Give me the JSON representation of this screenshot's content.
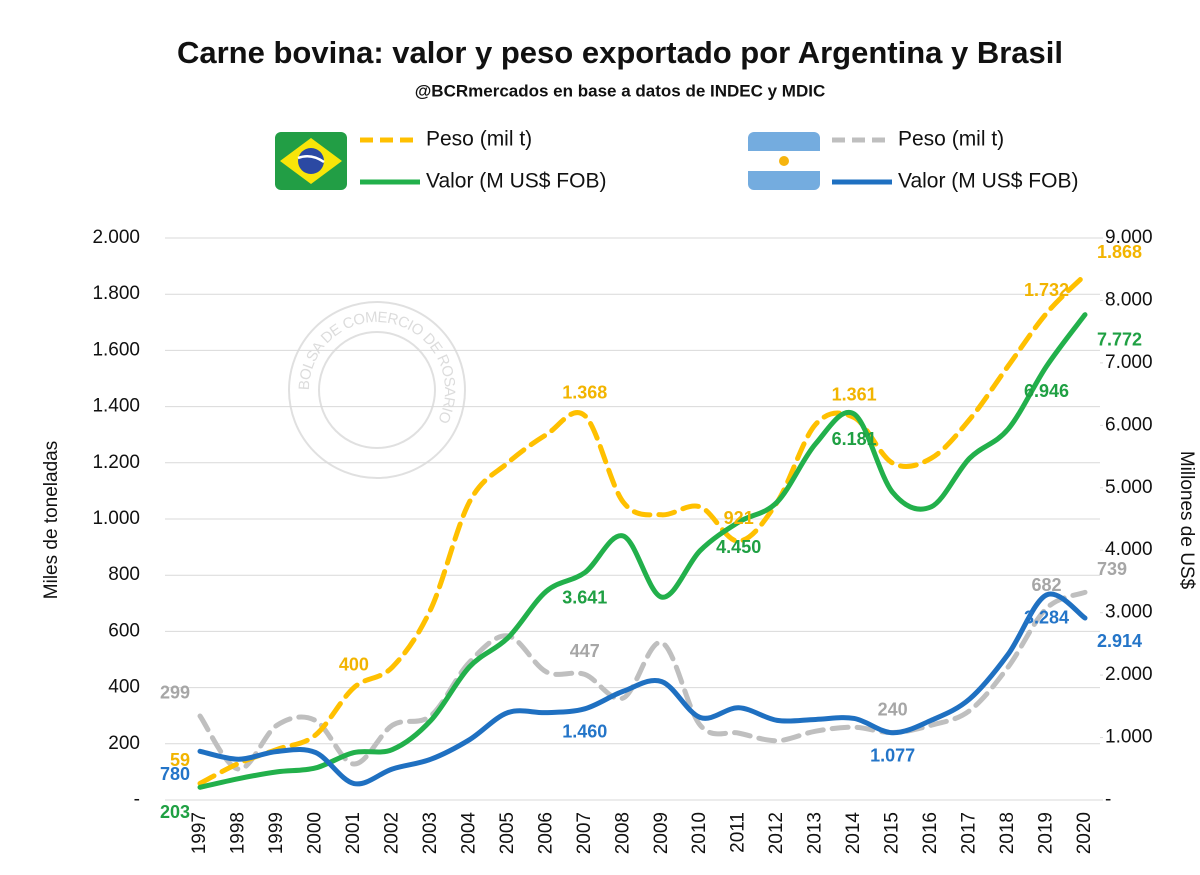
{
  "chart_data": {
    "type": "line",
    "title": "Carne bovina: valor y peso exportado  por Argentina  y Brasil",
    "subtitle": "@BCRmercados en base a datos de INDEC y MDIC",
    "watermark": "BOLSA DE COMERCIO DE ROSARIO",
    "y_label": "Miles de toneladas",
    "y2_label": "Millones de US$",
    "categories": [
      "1997",
      "1998",
      "1999",
      "2000",
      "2001",
      "2002",
      "2003",
      "2004",
      "2005",
      "2006",
      "2007",
      "2008",
      "2009",
      "2010",
      "2011",
      "2012",
      "2013",
      "2014",
      "2015",
      "2016",
      "2017",
      "2018",
      "2019",
      "2020"
    ],
    "ylim": [
      0,
      2000
    ],
    "yticks": [
      {
        "value": 0,
        "label": "-"
      },
      200,
      400,
      600,
      800,
      {
        "value": 1000,
        "label": "1.000"
      },
      {
        "value": 1200,
        "label": "1.200"
      },
      {
        "value": 1400,
        "label": "1.400"
      },
      {
        "value": 1600,
        "label": "1.600"
      },
      {
        "value": 1800,
        "label": "1.800"
      },
      {
        "value": 2000,
        "label": "2.000"
      }
    ],
    "y2lim": [
      0,
      9000
    ],
    "y2ticks": [
      {
        "value": 0,
        "label": "-"
      },
      {
        "value": 1000,
        "label": "1.000"
      },
      {
        "value": 2000,
        "label": "2.000"
      },
      {
        "value": 3000,
        "label": "3.000"
      },
      {
        "value": 4000,
        "label": "4.000"
      },
      {
        "value": 5000,
        "label": "5.000"
      },
      {
        "value": 6000,
        "label": "6.000"
      },
      {
        "value": 7000,
        "label": "7.000"
      },
      {
        "value": 8000,
        "label": "8.000"
      },
      {
        "value": 9000,
        "label": "9.000"
      }
    ],
    "grid": true,
    "series": [
      {
        "name": "Peso (mil t)",
        "country": "Brasil",
        "color": "#FFC000",
        "label_color": "#F2B400",
        "dashed": true,
        "axis": "y",
        "values": [
          59,
          130,
          180,
          231,
          400,
          473,
          680,
          1060,
          1200,
          1300,
          1368,
          1060,
          1015,
          1043,
          921,
          1060,
          1337,
          1361,
          1199,
          1216,
          1354,
          1544,
          1732,
          1868
        ],
        "value_labels": [
          "59",
          null,
          null,
          null,
          "400",
          null,
          null,
          null,
          null,
          null,
          "1.368",
          null,
          null,
          null,
          "921",
          null,
          null,
          "1.361",
          null,
          null,
          null,
          null,
          "1.732",
          "1.868"
        ]
      },
      {
        "name": "Valor (M US$ FOB)",
        "country": "Brasil",
        "color": "#22B04B",
        "label_color": "#1FA043",
        "dashed": false,
        "axis": "y2",
        "values": [
          203,
          342,
          450,
          513,
          760,
          808,
          1275,
          2130,
          2595,
          3342,
          3641,
          4228,
          3249,
          3995,
          4450,
          4772,
          5705,
          6181,
          4927,
          4694,
          5472,
          5938,
          6946,
          7772
        ],
        "value_labels": [
          "203",
          null,
          null,
          null,
          null,
          null,
          null,
          null,
          null,
          null,
          "3.641",
          null,
          null,
          null,
          "4.450",
          null,
          null,
          "6.181",
          null,
          null,
          null,
          null,
          "6.946",
          "7.772"
        ]
      },
      {
        "name": "Peso (mil t)",
        "country": "Argentina",
        "color": "#BFBFBF",
        "label_color": "#A6A6A6",
        "dashed": true,
        "axis": "y",
        "values": [
          299,
          110,
          266,
          283,
          128,
          266,
          300,
          490,
          584,
          456,
          447,
          363,
          560,
          266,
          238,
          211,
          245,
          259,
          240,
          266,
          318,
          473,
          682,
          739
        ],
        "value_labels": [
          "299",
          null,
          null,
          null,
          null,
          null,
          null,
          null,
          null,
          null,
          "447",
          null,
          null,
          null,
          null,
          null,
          null,
          null,
          "240",
          null,
          null,
          null,
          "682",
          "739"
        ]
      },
      {
        "name": "Valor (M US$ FOB)",
        "country": "Argentina",
        "color": "#1F70C1",
        "label_color": "#2475C8",
        "dashed": false,
        "axis": "y2",
        "values": [
          780,
          653,
          777,
          761,
          264,
          497,
          653,
          964,
          1399,
          1399,
          1460,
          1741,
          1896,
          1321,
          1477,
          1275,
          1290,
          1306,
          1077,
          1275,
          1617,
          2332,
          3284,
          2914
        ],
        "value_labels": [
          "780",
          null,
          null,
          null,
          null,
          null,
          null,
          null,
          null,
          null,
          "1.460",
          null,
          null,
          null,
          null,
          null,
          null,
          null,
          "1.077",
          null,
          null,
          null,
          "3.284",
          "2.914"
        ]
      }
    ]
  }
}
